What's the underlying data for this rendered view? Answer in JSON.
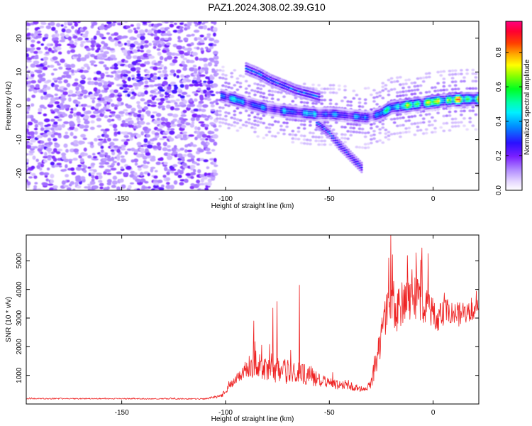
{
  "title": "PAZ1.2024.308.02.39.G10",
  "chart_data": [
    {
      "type": "heatmap",
      "title": "PAZ1.2024.308.02.39.G10",
      "xlabel": "Height of straight line (km)",
      "ylabel": "Frequency (Hz)",
      "xlim": [
        -196,
        22
      ],
      "ylim": [
        -25,
        25
      ],
      "xticks": [
        -150,
        -100,
        -50,
        0
      ],
      "yticks": [
        -20,
        -10,
        0,
        10,
        20
      ],
      "colorbar": {
        "label": "Normalized spectral amplitude",
        "range": [
          0,
          0.98
        ],
        "ticks": [
          0.0,
          0.2,
          0.4,
          0.6,
          0.8
        ],
        "colormap": "rainbow: white-lavender -> violet -> blue -> cyan -> green -> yellow -> orange -> red -> magenta"
      },
      "ridge": {
        "x": [
          -102,
          -95,
          -88,
          -80,
          -72,
          -64,
          -56,
          -48,
          -40,
          -32,
          -26,
          -20,
          -14,
          -8,
          -2,
          4,
          10,
          16,
          22
        ],
        "y": [
          3,
          1.8,
          0.5,
          -0.8,
          -1.5,
          -2,
          -2.5,
          -2.5,
          -3,
          -3.5,
          -2.5,
          -0.5,
          0,
          0.5,
          1,
          1.5,
          1.8,
          2,
          2
        ],
        "amplitude": [
          0.45,
          0.5,
          0.45,
          0.35,
          0.4,
          0.45,
          0.45,
          0.4,
          0.4,
          0.4,
          0.45,
          0.6,
          0.65,
          0.7,
          0.75,
          0.8,
          0.82,
          0.85,
          0.75
        ]
      },
      "branch_upper": {
        "x": [
          -90,
          -84,
          -78,
          -72,
          -66,
          -60,
          -54
        ],
        "y": [
          11,
          9.5,
          7.5,
          6,
          4.5,
          3.5,
          2.5
        ]
      },
      "branch_lower": {
        "x": [
          -56,
          -50,
          -46,
          -42,
          -38,
          -34
        ],
        "y": [
          -5,
          -8,
          -11,
          -13.5,
          -16,
          -18.5
        ]
      },
      "noise_region_x": [
        -196,
        -104
      ]
    },
    {
      "type": "line",
      "xlabel": "Height of straight line (km)",
      "ylabel": "SNR (10 * v/v)",
      "xlim": [
        -196,
        22
      ],
      "ylim": [
        0,
        5900
      ],
      "xticks": [
        -150,
        -100,
        -50,
        0
      ],
      "yticks": [
        1000,
        2000,
        3000,
        4000,
        5000
      ],
      "color": "#ee2222",
      "envelope": {
        "x": [
          -196,
          -150,
          -110,
          -102,
          -98,
          -93,
          -88,
          -80,
          -72,
          -66,
          -60,
          -54,
          -48,
          -42,
          -36,
          -32,
          -30,
          -28,
          -25,
          -22,
          -20,
          -17,
          -14,
          -10,
          -6,
          -2,
          2,
          6,
          10,
          14,
          18,
          22
        ],
        "base": [
          180,
          180,
          170,
          260,
          600,
          1000,
          1200,
          1100,
          1000,
          950,
          900,
          720,
          620,
          620,
          520,
          470,
          700,
          1150,
          2100,
          3200,
          3400,
          3000,
          3400,
          3500,
          3400,
          3100,
          2900,
          3100,
          3000,
          3000,
          3100,
          3300
        ],
        "amp": [
          40,
          40,
          40,
          120,
          300,
          500,
          900,
          800,
          900,
          800,
          800,
          500,
          350,
          350,
          250,
          200,
          400,
          800,
          1200,
          1500,
          1800,
          1500,
          1500,
          1500,
          1400,
          1200,
          1100,
          1000,
          900,
          800,
          800,
          700
        ]
      },
      "peaks": [
        {
          "x": -20.5,
          "y": 5880
        },
        {
          "x": -21.5,
          "y": 5100
        },
        {
          "x": -5.5,
          "y": 5450
        },
        {
          "x": -2.5,
          "y": 5250
        },
        {
          "x": -64.5,
          "y": 4150
        },
        {
          "x": -75.2,
          "y": 3580
        },
        {
          "x": -77.3,
          "y": 3350
        },
        {
          "x": -86.5,
          "y": 2900
        }
      ]
    }
  ]
}
